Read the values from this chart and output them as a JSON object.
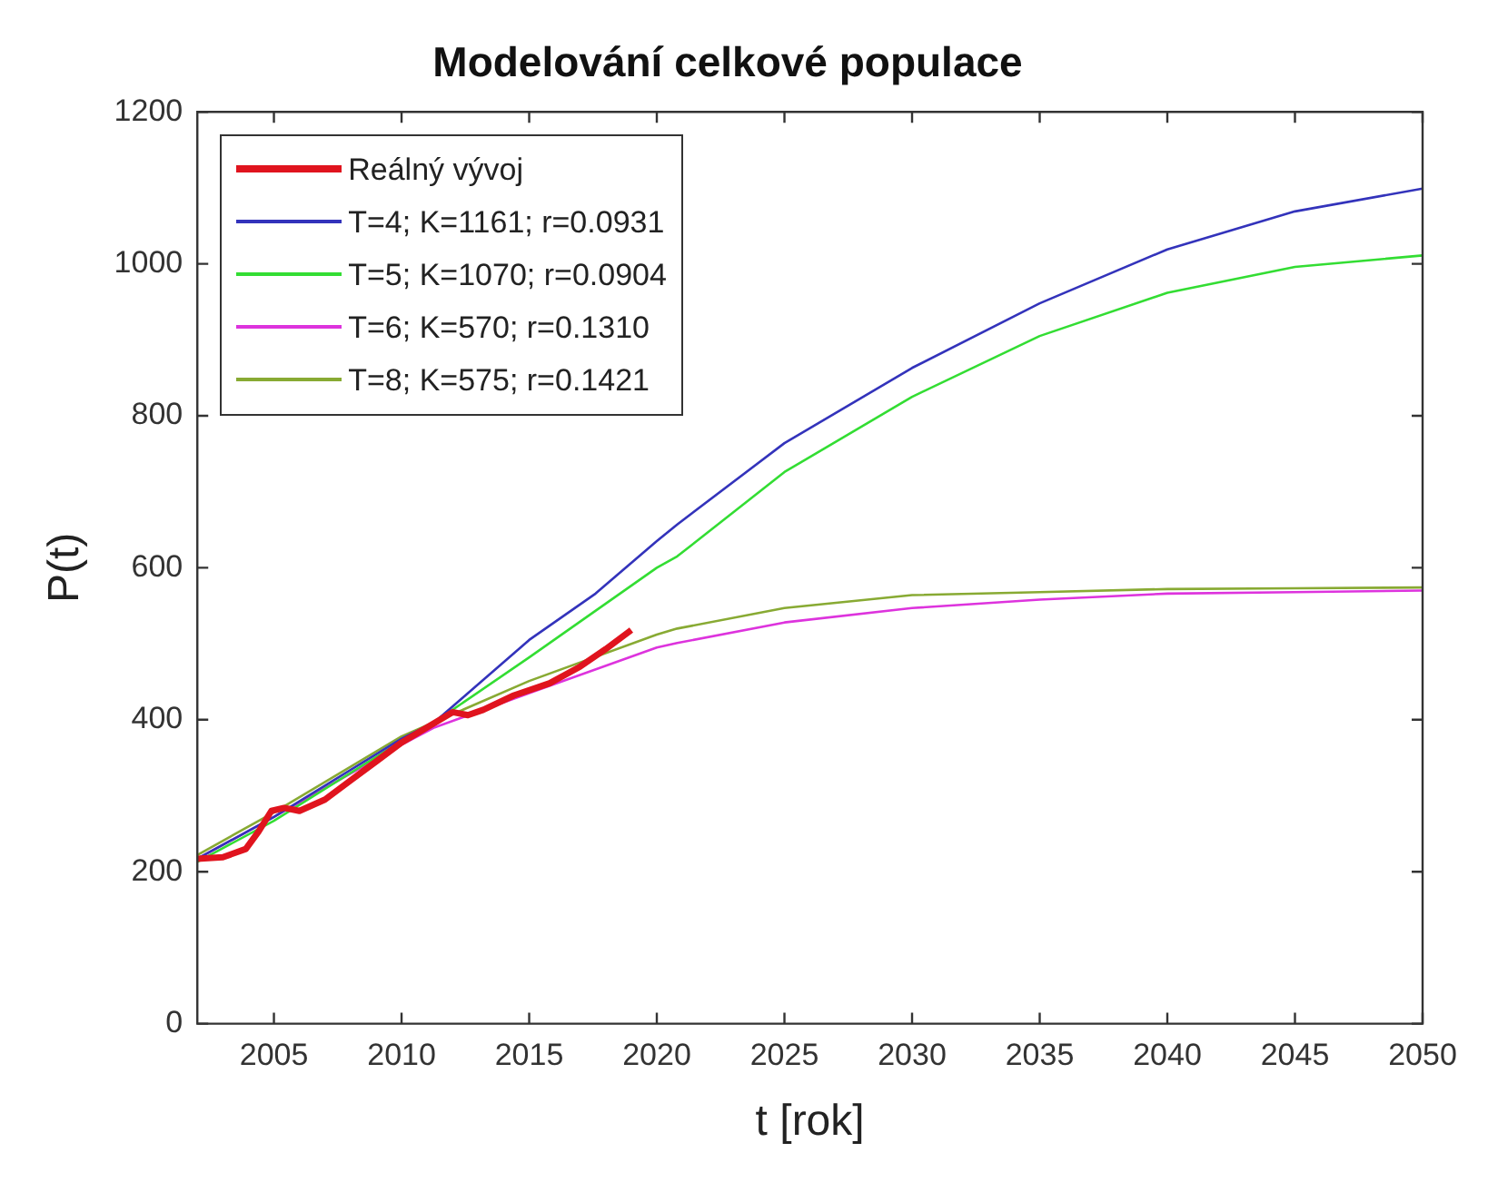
{
  "chart_data": {
    "type": "line",
    "title": "Modelování celkové populace",
    "xlabel": "t [rok]",
    "ylabel": "P(t)",
    "xlim": [
      2002,
      2050
    ],
    "xticks": [
      2005,
      2010,
      2015,
      2020,
      2025,
      2030,
      2035,
      2040,
      2045,
      2050
    ],
    "ylim": [
      0,
      1200
    ],
    "yticks": [
      0,
      200,
      400,
      600,
      800,
      1000,
      1200
    ],
    "grid": false,
    "legend": "top left",
    "marker": "none",
    "line_style": "solid",
    "series": [
      {
        "name": "Reálný vývoj",
        "color": "#e0141e",
        "x": [
          2002,
          2003,
          2003.9,
          2004.4,
          2004.9,
          2005.4,
          2006,
          2007,
          2008,
          2009,
          2010,
          2011,
          2012,
          2012.6,
          2013.2,
          2014.4,
          2015.8,
          2017,
          2018,
          2019
        ],
        "values": [
          217,
          219,
          230,
          253,
          280,
          284,
          280,
          295,
          320,
          345,
          370,
          390,
          410,
          406,
          413,
          432,
          448,
          470,
          493,
          518
        ]
      },
      {
        "name": "T=4; K=1161; r=0.0931",
        "color": "#3333bb",
        "x": [
          2002,
          2005,
          2010,
          2011.3,
          2015,
          2017.6,
          2020,
          2020.8,
          2025,
          2030,
          2035,
          2040,
          2045,
          2050
        ],
        "values": [
          217,
          272,
          375,
          397,
          505,
          566,
          635,
          657,
          764,
          863,
          948,
          1019,
          1069,
          1099
        ]
      },
      {
        "name": "T=5; K=1070; r=0.0904",
        "color": "#33dd33",
        "x": [
          2002,
          2005,
          2010,
          2011.3,
          2015,
          2020,
          2020.8,
          2025,
          2030,
          2035,
          2040,
          2045,
          2050
        ],
        "values": [
          213,
          267,
          372,
          397,
          482,
          600,
          615,
          726,
          825,
          905,
          962,
          996,
          1011
        ]
      },
      {
        "name": "T=6; K=570; r=0.1310",
        "color": "#dd33dd",
        "x": [
          2002,
          2005,
          2010,
          2011.3,
          2015,
          2020,
          2020.8,
          2025,
          2030,
          2035,
          2040,
          2045,
          2050
        ],
        "values": [
          217,
          272,
          367,
          390,
          435,
          495,
          501,
          528,
          547,
          558,
          566,
          568,
          570
        ]
      },
      {
        "name": "T=8; K=575; r=0.1421",
        "color": "#88aa33",
        "x": [
          2002,
          2005,
          2010,
          2011.3,
          2015,
          2020,
          2020.8,
          2025,
          2030,
          2035,
          2040,
          2045,
          2050
        ],
        "values": [
          222,
          278,
          378,
          397,
          451,
          512,
          520,
          547,
          564,
          568,
          572,
          573,
          574
        ]
      }
    ]
  }
}
